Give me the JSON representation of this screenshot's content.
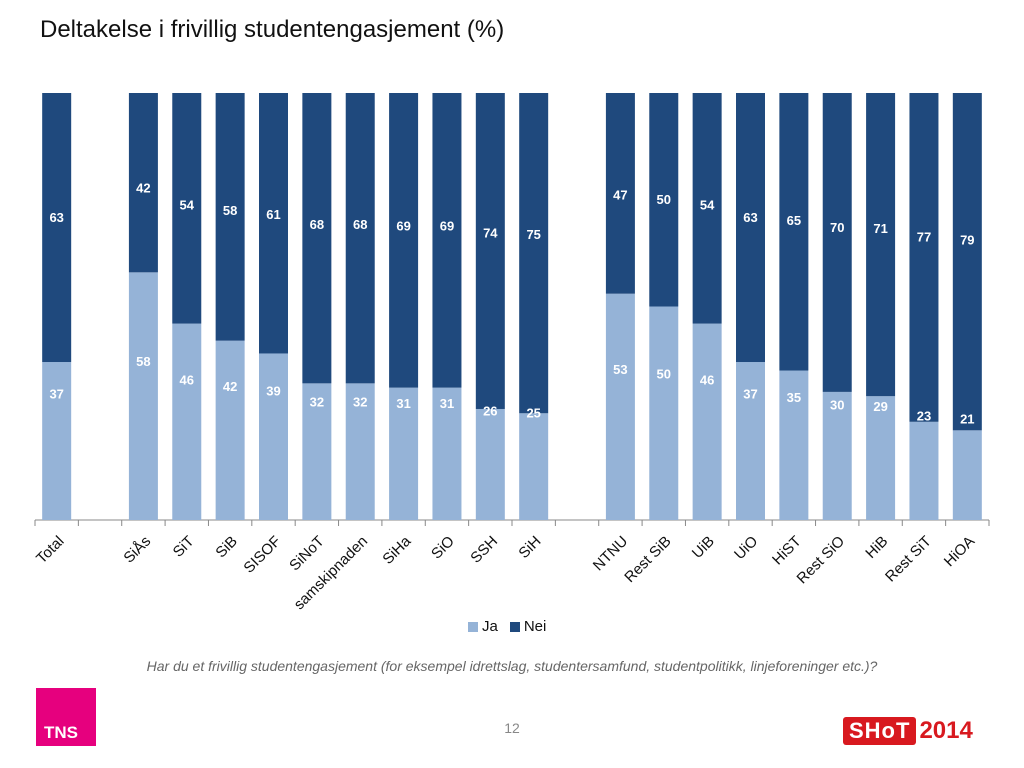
{
  "title": "Deltakelse i frivillig studentengasjement (%)",
  "question": "Har du et frivillig studentengasjement (for eksempel idrettslag, studentersamfund, studentpolitikk, linjeforeninger etc.)?",
  "page_number": "12",
  "logos": {
    "tns": "TNS",
    "shot": "SHoT",
    "shot_year": "2014"
  },
  "colors": {
    "ja": "#95b3d7",
    "nei": "#1f497d",
    "axis": "#888888"
  },
  "chart_data": {
    "type": "bar",
    "stacked": true,
    "categories": [
      "Total",
      "",
      "SiÅs",
      "SiT",
      "SiB",
      "SISOF",
      "SiNoT",
      "samskipnaden",
      "SiHa",
      "SiO",
      "SSH",
      "SiH",
      "",
      "NTNU",
      "Rest SiB",
      "UiB",
      "UiO",
      "HiST",
      "Rest SiO",
      "HiB",
      "Rest SiT",
      "HiOA"
    ],
    "series": [
      {
        "name": "Ja",
        "values": [
          37,
          null,
          58,
          46,
          42,
          39,
          32,
          32,
          31,
          31,
          26,
          25,
          null,
          53,
          50,
          46,
          37,
          35,
          30,
          29,
          23,
          21
        ]
      },
      {
        "name": "Nei",
        "values": [
          63,
          null,
          42,
          54,
          58,
          61,
          68,
          68,
          69,
          69,
          74,
          75,
          null,
          47,
          50,
          54,
          63,
          65,
          70,
          71,
          77,
          79
        ]
      }
    ],
    "ylim": [
      0,
      100
    ],
    "legend": "bottom",
    "grid": false
  }
}
